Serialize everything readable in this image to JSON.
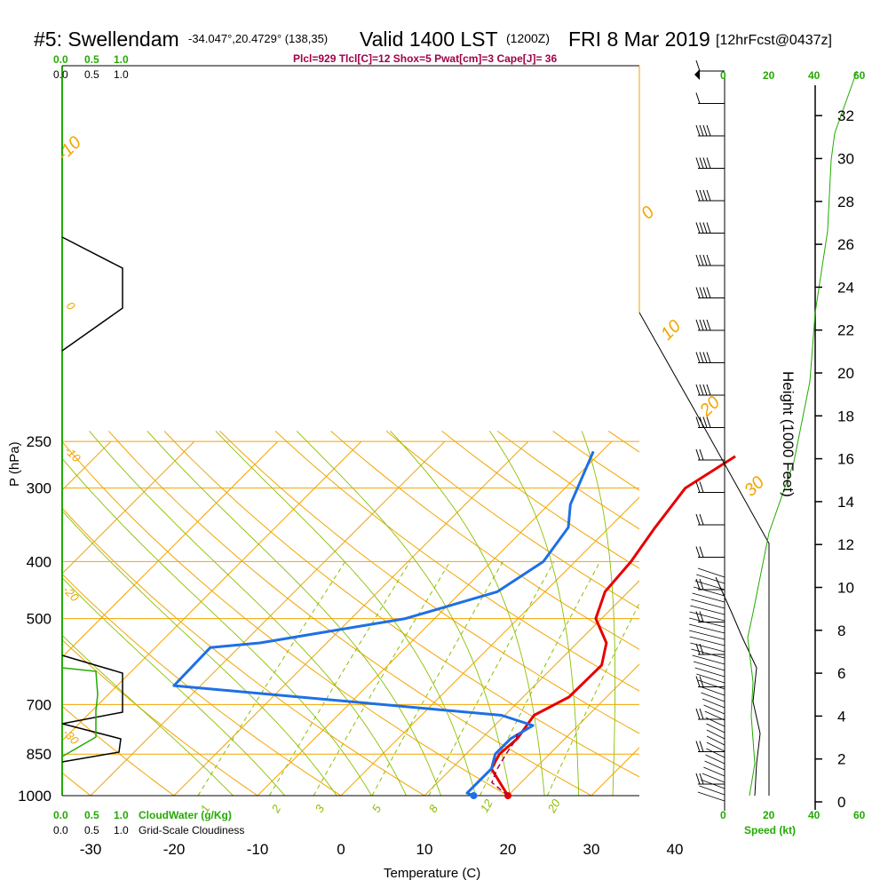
{
  "header": {
    "station": "#5: Swellendam",
    "coords": "-34.047°,20.4729° (138,35)",
    "valid": "Valid 1400 LST",
    "utc": "(1200Z)",
    "date": "FRI 8 Mar 2019",
    "forecast": "[12hrFcst@0437z]"
  },
  "indices": "Plcl=929 Tlcl[C]=12 Shox=5 Pwat[cm]=3 Cape[J]= 36",
  "colors": {
    "isotherm": "#f2a500",
    "dry_adiabat": "#f2a500",
    "moist_adiabat": "#8bbf00",
    "mixing_ratio": "#8bbf00",
    "temperature": "#e60000",
    "dewpoint": "#1e6fe6",
    "parcel": "#a0004a",
    "height": "#22aa00",
    "cloud_water": "#22aa00"
  },
  "chart_data": {
    "type": "line",
    "title": "#5: Swellendam Valid 1400 LST (1200Z) FRI 8 Mar 2019",
    "xlabel": "Temperature (C)",
    "ylabel": "P (hPa)",
    "right_ylabel": "Height (1000 Feet)",
    "x_ticks": [
      "-30",
      "-20",
      "-10",
      "0",
      "10",
      "20",
      "30",
      "40"
    ],
    "y_ticks": [
      "250",
      "300",
      "400",
      "500",
      "700",
      "850",
      "1000"
    ],
    "height_ticks": [
      "0",
      "2",
      "4",
      "6",
      "8",
      "10",
      "12",
      "14",
      "16",
      "18",
      "20",
      "22",
      "24",
      "26",
      "28",
      "30",
      "32"
    ],
    "pressure_levels": [
      250,
      300,
      400,
      500,
      700,
      850,
      1000
    ],
    "xlim": [
      -34,
      47
    ],
    "ylim_hpa": [
      1000,
      250
    ],
    "skew": "45-degree skew-T log-P",
    "isotherm_labels": [
      "30",
      "20",
      "10",
      "0",
      "-10",
      "-20",
      "-30",
      "-40"
    ],
    "dry_adiabat_labels": [
      "-10",
      "0",
      "10",
      "20",
      "30"
    ],
    "mixing_ratio_labels": [
      "1",
      "2",
      "3",
      "5",
      "8",
      "12",
      "20"
    ],
    "series": [
      {
        "name": "Temperature",
        "points": [
          [
            20,
            1000
          ],
          [
            14.8,
            900
          ],
          [
            14,
            850
          ],
          [
            14.3,
            800
          ],
          [
            13.5,
            730
          ],
          [
            15.5,
            680
          ],
          [
            15.6,
            600
          ],
          [
            13.5,
            550
          ],
          [
            9.3,
            500
          ],
          [
            7.2,
            450
          ],
          [
            6.7,
            400
          ],
          [
            5.5,
            350
          ],
          [
            4.4,
            300
          ],
          [
            6.6,
            265
          ]
        ]
      },
      {
        "name": "Dewpoint",
        "points": [
          [
            15.9,
            1000
          ],
          [
            14.8,
            990
          ],
          [
            14.8,
            900
          ],
          [
            13.5,
            850
          ],
          [
            13.5,
            800
          ],
          [
            14.6,
            760
          ],
          [
            9.6,
            730
          ],
          [
            -33.2,
            650
          ],
          [
            -33.4,
            560
          ],
          [
            -28,
            550
          ],
          [
            -13.5,
            500
          ],
          [
            -5.7,
            450
          ],
          [
            -3.8,
            400
          ],
          [
            -4.9,
            350
          ],
          [
            -7.4,
            320
          ],
          [
            -11,
            260
          ]
        ]
      },
      {
        "name": "Parcel",
        "points": [
          [
            20,
            1000
          ],
          [
            16.5,
            950
          ],
          [
            15.5,
            900
          ],
          [
            14.8,
            850
          ],
          [
            14.2,
            800
          ],
          [
            13.5,
            780
          ]
        ]
      }
    ],
    "winds_barbs": "wind barbs at right, 1000-265 hPa",
    "wind_speed_axis": {
      "label": "Speed (kt)",
      "ticks": [
        "0",
        "20",
        "40",
        "60"
      ]
    },
    "cloudiness_axis": {
      "labels": [
        "CloudWater (g/Kg)",
        "Grid-Scale Cloudiness"
      ],
      "ticks": [
        "0.0",
        "0.5",
        "1.0"
      ]
    }
  }
}
